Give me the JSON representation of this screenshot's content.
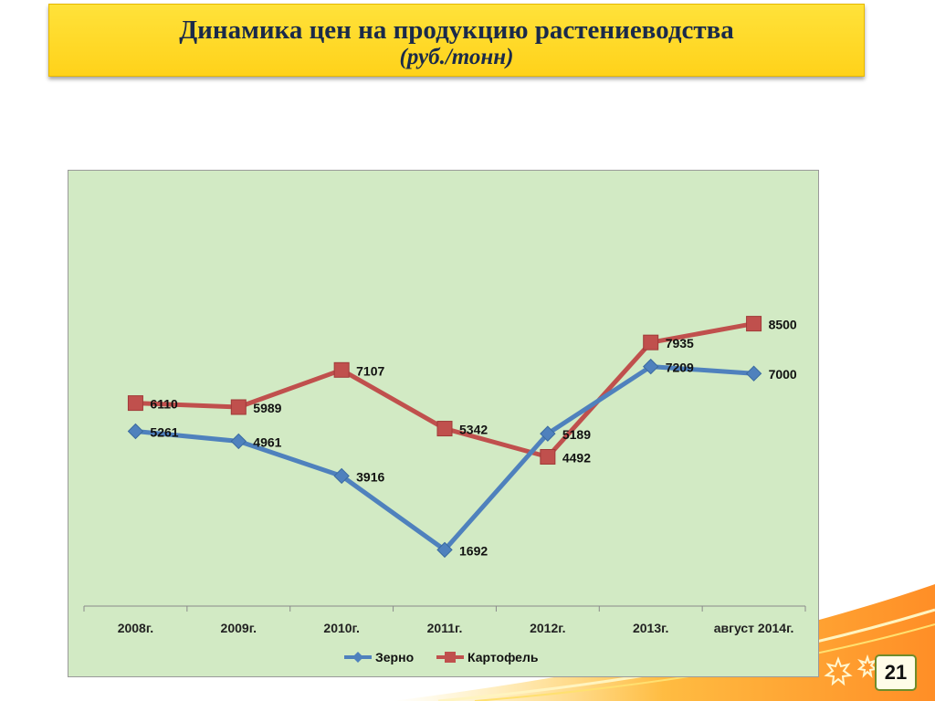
{
  "title": {
    "main": "Динамика цен на продукцию растениеводства",
    "sub": "(руб./тонн)"
  },
  "page_number": "21",
  "colors": {
    "grain": "#4f81bd",
    "potato": "#c0504d",
    "plot_bg": "#d2eac4",
    "title_bg": "#ffd828"
  },
  "chart_data": {
    "type": "line",
    "categories": [
      "2008г.",
      "2009г.",
      "2010г.",
      "2011г.",
      "2012г.",
      "2013г.",
      "август 2014г."
    ],
    "series": [
      {
        "name": "Зерно",
        "values": [
          5261,
          4961,
          3916,
          1692,
          5189,
          7209,
          7000
        ],
        "color": "#4f81bd",
        "marker": "diamond"
      },
      {
        "name": "Картофель",
        "values": [
          6110,
          5989,
          7107,
          5342,
          4492,
          7935,
          8500
        ],
        "color": "#c0504d",
        "marker": "square"
      }
    ],
    "ylim": [
      0,
      9000
    ],
    "grid": false,
    "legend": "bottom",
    "data_labels": true
  }
}
